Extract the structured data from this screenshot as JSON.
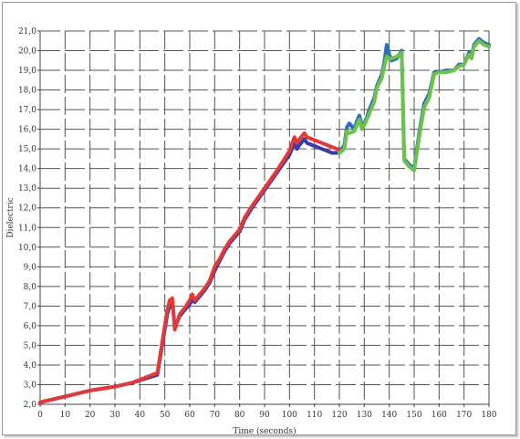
{
  "chart_data": {
    "type": "line",
    "title": "",
    "xlabel": "Time (seconds)",
    "ylabel": "Dielectric",
    "xlim": [
      0,
      180
    ],
    "ylim": [
      2.0,
      21.0
    ],
    "x_ticks": [
      0,
      10,
      20,
      30,
      40,
      50,
      60,
      70,
      80,
      90,
      100,
      110,
      120,
      130,
      140,
      150,
      160,
      170,
      180
    ],
    "y_ticks": [
      2.0,
      3.0,
      4.0,
      5.0,
      6.0,
      7.0,
      8.0,
      9.0,
      10.0,
      11.0,
      12.0,
      13.0,
      14.0,
      15.0,
      16.0,
      17.0,
      18.0,
      19.0,
      20.0,
      21.0
    ],
    "x_tick_labels": [
      "0",
      "10",
      "20",
      "30",
      "40",
      "50",
      "60",
      "70",
      "80",
      "90",
      "100",
      "110",
      "120",
      "130",
      "140",
      "150",
      "160",
      "170",
      "180"
    ],
    "y_tick_labels": [
      "2,0",
      "3,0",
      "4,0",
      "5,0",
      "6,0",
      "7,0",
      "8,0",
      "9,0",
      "10,0",
      "11,0",
      "12,0",
      "13,0",
      "14,0",
      "15,0",
      "16,0",
      "17,0",
      "18,0",
      "19,0",
      "20,0",
      "21,0"
    ],
    "grid": "dashed",
    "legend": "none",
    "series": [
      {
        "color": "#3a3aa8",
        "x": [
          0,
          10,
          20,
          30,
          37,
          47,
          51,
          52,
          53,
          54,
          56,
          58,
          60,
          61,
          62,
          64,
          66,
          68,
          70,
          72,
          74,
          76,
          80,
          82,
          85,
          90,
          95,
          100,
          102,
          103,
          104,
          106,
          107,
          109,
          111,
          113,
          115,
          117,
          119,
          120
        ],
        "y": [
          2.1,
          2.4,
          2.7,
          2.9,
          3.1,
          3.5,
          6.6,
          7.0,
          7.3,
          5.9,
          6.5,
          6.8,
          7.1,
          7.3,
          7.2,
          7.5,
          7.8,
          8.2,
          8.8,
          9.3,
          9.8,
          10.2,
          10.8,
          11.4,
          12.0,
          12.9,
          13.8,
          14.7,
          15.3,
          15.0,
          15.2,
          15.5,
          15.3,
          15.2,
          15.1,
          15.0,
          14.9,
          14.8,
          14.8,
          14.8
        ]
      },
      {
        "color": "#e03a3a",
        "x": [
          0,
          10,
          20,
          30,
          37,
          47,
          51,
          52,
          53,
          54,
          56,
          58,
          60,
          61,
          62,
          64,
          66,
          68,
          70,
          72,
          74,
          76,
          80,
          82,
          85,
          90,
          95,
          100,
          102,
          103,
          104,
          106,
          107,
          109,
          111,
          113,
          115,
          117,
          119,
          120
        ],
        "y": [
          2.1,
          2.4,
          2.7,
          2.9,
          3.1,
          3.6,
          6.8,
          7.3,
          7.4,
          5.8,
          6.6,
          6.9,
          7.3,
          7.6,
          7.3,
          7.6,
          7.9,
          8.3,
          9.0,
          9.4,
          9.9,
          10.3,
          10.9,
          11.5,
          12.1,
          13.0,
          13.9,
          14.9,
          15.6,
          15.3,
          15.5,
          15.8,
          15.6,
          15.5,
          15.4,
          15.3,
          15.2,
          15.1,
          15.0,
          15.0
        ]
      },
      {
        "color": "#2a6fba",
        "x": [
          120,
          122,
          123,
          124,
          126,
          127,
          128,
          129,
          130,
          131,
          132,
          134,
          135,
          137,
          138,
          139,
          140,
          141,
          143,
          145,
          146,
          148,
          150,
          152,
          154,
          156,
          158,
          160,
          163,
          166,
          168,
          170,
          172,
          173,
          174,
          176,
          178,
          180
        ],
        "y": [
          14.8,
          15.2,
          16.1,
          16.3,
          16.0,
          16.4,
          16.7,
          16.2,
          16.3,
          16.6,
          17.0,
          17.6,
          18.2,
          18.8,
          19.4,
          20.3,
          19.8,
          19.5,
          19.6,
          20.0,
          14.5,
          14.2,
          14.0,
          15.8,
          17.3,
          17.8,
          18.9,
          18.9,
          19.0,
          19.0,
          19.3,
          19.3,
          19.9,
          19.7,
          20.3,
          20.6,
          20.4,
          20.3
        ]
      },
      {
        "color": "#6cc24a",
        "x": [
          120,
          122,
          123,
          124,
          126,
          127,
          128,
          129,
          130,
          131,
          132,
          134,
          135,
          137,
          138,
          139,
          140,
          141,
          143,
          145,
          146,
          148,
          150,
          152,
          154,
          156,
          158,
          160,
          163,
          166,
          168,
          170,
          172,
          173,
          174,
          176,
          178,
          180
        ],
        "y": [
          14.8,
          15.0,
          15.9,
          15.8,
          15.9,
          16.2,
          16.5,
          16.0,
          16.2,
          16.5,
          16.8,
          17.4,
          18.1,
          18.6,
          19.2,
          19.7,
          19.6,
          19.6,
          19.7,
          19.9,
          14.4,
          14.1,
          13.9,
          15.6,
          17.1,
          17.6,
          18.8,
          18.9,
          18.9,
          19.0,
          19.2,
          19.3,
          19.8,
          19.6,
          20.2,
          20.5,
          20.3,
          20.2
        ]
      }
    ]
  }
}
